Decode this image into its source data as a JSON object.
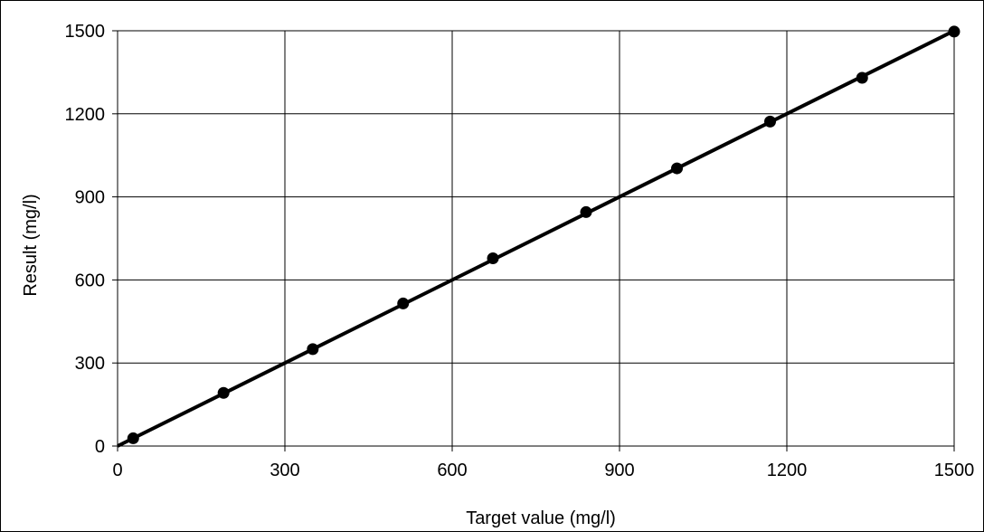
{
  "chart_data": {
    "type": "scatter",
    "title": "",
    "xlabel": "Target value (mg/l)",
    "ylabel": "Result (mg/l)",
    "xlim": [
      0,
      1500
    ],
    "ylim": [
      0,
      1500
    ],
    "xticks": [
      0,
      300,
      600,
      900,
      1200,
      1500
    ],
    "yticks": [
      0,
      300,
      600,
      900,
      1200,
      1500
    ],
    "grid": true,
    "legend": "none",
    "series": [
      {
        "marker": "circle",
        "color": "#000000",
        "x": [
          28,
          190,
          350,
          512,
          673,
          840,
          1003,
          1170,
          1335,
          1500
        ],
        "y": [
          28,
          192,
          350,
          515,
          678,
          845,
          1003,
          1172,
          1330,
          1497
        ]
      }
    ],
    "fit_lines": [
      {
        "style": "solid",
        "color": "#000000",
        "x": [
          0,
          1500
        ],
        "y": [
          0,
          1500
        ]
      },
      {
        "style": "dashed",
        "color": "#000000",
        "x": [
          0,
          1500
        ],
        "y": [
          0,
          1500
        ]
      }
    ]
  }
}
